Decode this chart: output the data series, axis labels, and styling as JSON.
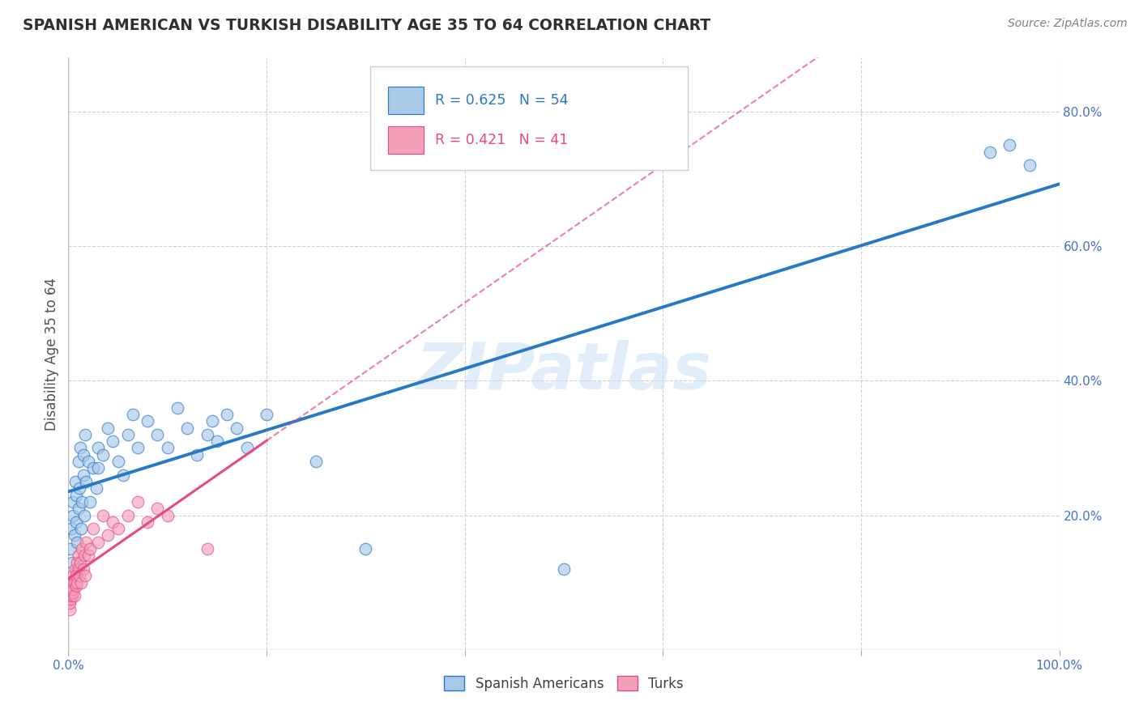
{
  "title": "SPANISH AMERICAN VS TURKISH DISABILITY AGE 35 TO 64 CORRELATION CHART",
  "source": "Source: ZipAtlas.com",
  "ylabel": "Disability Age 35 to 64",
  "xlim": [
    0,
    100
  ],
  "ylim": [
    0,
    88
  ],
  "xticks": [
    0,
    20,
    40,
    60,
    80,
    100
  ],
  "yticks": [
    0,
    20,
    40,
    60,
    80
  ],
  "xticklabels": [
    "0.0%",
    "",
    "",
    "",
    "",
    "100.0%"
  ],
  "yticklabels": [
    "",
    "20.0%",
    "40.0%",
    "60.0%",
    "80.0%"
  ],
  "legend_r1": "R = 0.625",
  "legend_n1": "N = 54",
  "legend_r2": "R = 0.421",
  "legend_n2": "N = 41",
  "blue_color": "#a8c8e8",
  "pink_color": "#f4a0b8",
  "trend_blue": "#2878c8",
  "trend_pink": "#e84880",
  "watermark_text": "ZIPatlas",
  "background_color": "#ffffff",
  "grid_color": "#d0d0d0",
  "tick_color": "#4472c4",
  "title_color": "#303030",
  "source_color": "#808080",
  "blue_scatter_x": [
    0.2,
    0.3,
    0.4,
    0.5,
    0.5,
    0.6,
    0.7,
    0.8,
    0.8,
    0.9,
    1.0,
    1.0,
    1.1,
    1.2,
    1.3,
    1.4,
    1.5,
    1.5,
    1.6,
    1.7,
    1.8,
    2.0,
    2.2,
    2.5,
    2.8,
    3.0,
    3.0,
    3.5,
    4.0,
    4.5,
    5.0,
    5.5,
    6.0,
    6.5,
    7.0,
    8.0,
    9.0,
    10.0,
    11.0,
    12.0,
    13.0,
    14.0,
    14.5,
    15.0,
    16.0,
    17.0,
    18.0,
    20.0,
    25.0,
    30.0,
    50.0,
    93.0,
    95.0,
    97.0
  ],
  "blue_scatter_y": [
    15.0,
    18.0,
    13.0,
    20.0,
    22.0,
    17.0,
    25.0,
    19.0,
    23.0,
    16.0,
    28.0,
    21.0,
    24.0,
    30.0,
    18.0,
    22.0,
    26.0,
    29.0,
    20.0,
    32.0,
    25.0,
    28.0,
    22.0,
    27.0,
    24.0,
    30.0,
    27.0,
    29.0,
    33.0,
    31.0,
    28.0,
    26.0,
    32.0,
    35.0,
    30.0,
    34.0,
    32.0,
    30.0,
    36.0,
    33.0,
    29.0,
    32.0,
    34.0,
    31.0,
    35.0,
    33.0,
    30.0,
    35.0,
    28.0,
    15.0,
    12.0,
    74.0,
    75.0,
    72.0
  ],
  "pink_scatter_x": [
    0.1,
    0.15,
    0.2,
    0.25,
    0.3,
    0.35,
    0.4,
    0.45,
    0.5,
    0.5,
    0.6,
    0.65,
    0.7,
    0.75,
    0.8,
    0.85,
    0.9,
    1.0,
    1.0,
    1.1,
    1.2,
    1.3,
    1.4,
    1.5,
    1.6,
    1.7,
    1.8,
    2.0,
    2.2,
    2.5,
    3.0,
    3.5,
    4.0,
    4.5,
    5.0,
    6.0,
    7.0,
    8.0,
    9.0,
    10.0,
    14.0
  ],
  "pink_scatter_y": [
    6.0,
    7.0,
    8.0,
    7.5,
    9.0,
    8.0,
    10.0,
    8.5,
    11.0,
    9.0,
    10.0,
    8.0,
    12.0,
    9.5,
    11.0,
    10.0,
    13.0,
    12.0,
    14.0,
    11.0,
    13.0,
    10.0,
    15.0,
    12.0,
    14.0,
    11.0,
    16.0,
    14.0,
    15.0,
    18.0,
    16.0,
    20.0,
    17.0,
    19.0,
    18.0,
    20.0,
    22.0,
    19.0,
    21.0,
    20.0,
    15.0
  ]
}
